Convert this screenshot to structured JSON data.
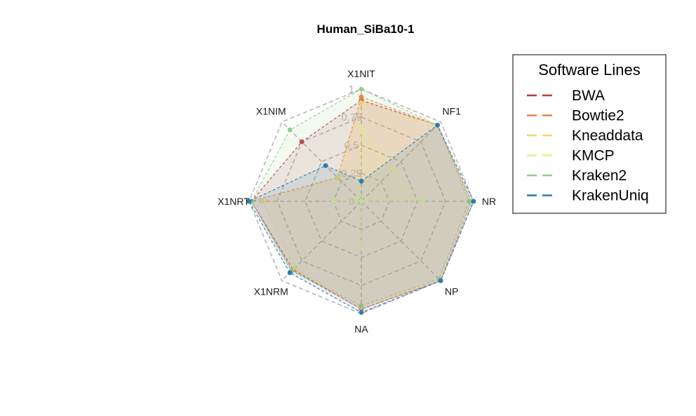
{
  "chart_data": {
    "type": "radar",
    "title": "Human_SiBa10-1",
    "axes": [
      "X1NIT",
      "NF1",
      "NR",
      "NP",
      "NA",
      "X1NRM",
      "X1NRT",
      "X1NIM"
    ],
    "ring_labels": [
      "0",
      "0.25",
      "0.5",
      "0.75",
      "1"
    ],
    "range": [
      0,
      1
    ],
    "legend": {
      "title": "Software Lines",
      "position": "right"
    },
    "series": [
      {
        "name": "BWA",
        "color": "#c4363f",
        "values": [
          0.9,
          0.96,
          0.98,
          1.0,
          0.96,
          0.86,
          0.98,
          0.75
        ]
      },
      {
        "name": "Bowtie2",
        "color": "#ec8247",
        "values": [
          0.93,
          0.96,
          0.98,
          1.0,
          0.96,
          0.87,
          0.98,
          0.3
        ]
      },
      {
        "name": "Kneaddata",
        "color": "#f2d765",
        "values": [
          0.88,
          0.96,
          0.98,
          1.0,
          0.94,
          0.84,
          0.88,
          0.3
        ]
      },
      {
        "name": "KMCP",
        "color": "#e4ee8a",
        "values": [
          0.65,
          0.4,
          0.55,
          0.0,
          0.4,
          0.0,
          0.25,
          0.05
        ]
      },
      {
        "name": "Kraken2",
        "color": "#98cc8a",
        "values": [
          1.0,
          0.96,
          0.96,
          0.98,
          0.93,
          0.88,
          0.98,
          0.9
        ]
      },
      {
        "name": "KrakenUniq",
        "color": "#2c7bb6",
        "values": [
          0.18,
          0.96,
          1.0,
          1.0,
          0.99,
          0.9,
          1.0,
          0.45
        ]
      }
    ]
  }
}
